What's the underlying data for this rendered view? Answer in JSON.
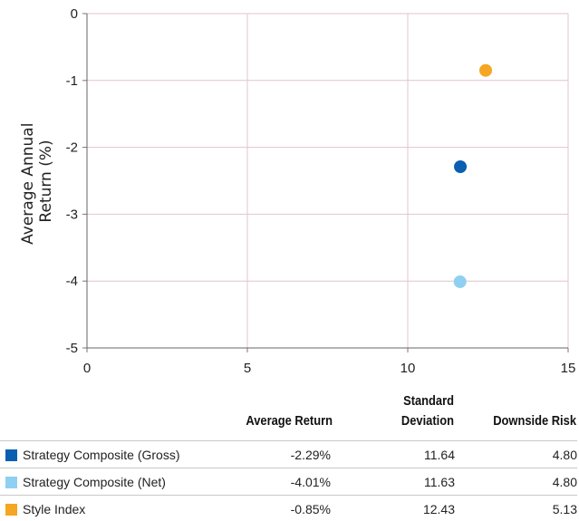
{
  "chart_data": {
    "type": "scatter",
    "ylabel": "Average Annual Return (%)",
    "ylabel_lines": [
      "Average Annual",
      "Return (%)"
    ],
    "xlabel": "",
    "xlim": [
      0,
      15
    ],
    "ylim": [
      -5,
      0
    ],
    "xticks": [
      0,
      5,
      10,
      15
    ],
    "yticks": [
      0,
      -1,
      -2,
      -3,
      -4,
      -5
    ],
    "grid": true,
    "series": [
      {
        "name": "Strategy Composite (Gross)",
        "x": 11.64,
        "y": -2.29,
        "color": "#0b5fb0"
      },
      {
        "name": "Strategy Composite (Net)",
        "x": 11.63,
        "y": -4.01,
        "color": "#8fd0f2"
      },
      {
        "name": "Style Index",
        "x": 12.43,
        "y": -0.85,
        "color": "#f5a623"
      }
    ]
  },
  "table": {
    "headers": {
      "avg_return": "Average Return",
      "std_dev_line1": "Standard",
      "std_dev_line2": "Deviation",
      "downside": "Downside Risk"
    },
    "rows": [
      {
        "name": "Strategy Composite (Gross)",
        "color": "#0b5fb0",
        "avg_return": "-2.29%",
        "std_dev": "11.64",
        "downside": "4.80"
      },
      {
        "name": "Strategy Composite (Net)",
        "color": "#8fd0f2",
        "avg_return": "-4.01%",
        "std_dev": "11.63",
        "downside": "4.80"
      },
      {
        "name": "Style Index",
        "color": "#f5a623",
        "avg_return": "-0.85%",
        "std_dev": "12.43",
        "downside": "5.13"
      }
    ]
  }
}
